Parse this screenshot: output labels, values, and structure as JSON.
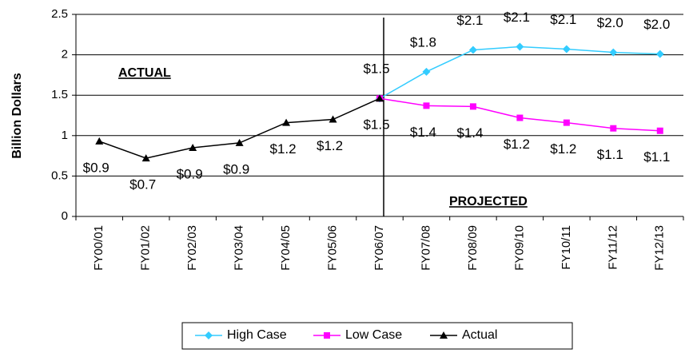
{
  "chart_data": {
    "type": "line",
    "y_label": "Billion Dollars",
    "annotations": [
      "ACTUAL",
      "PROJECTED"
    ],
    "categories": [
      "FY00/01",
      "FY01/02",
      "FY02/03",
      "FY03/04",
      "FY04/05",
      "FY05/06",
      "FY06/07",
      "FY07/08",
      "FY08/09",
      "FY09/10",
      "FY10/11",
      "FY11/12",
      "FY12/13"
    ],
    "series": [
      {
        "name": "High Case",
        "color": "#33ccff",
        "marker": "diamond",
        "values": [
          null,
          null,
          null,
          null,
          null,
          null,
          1.46,
          1.79,
          2.06,
          2.1,
          2.07,
          2.03,
          2.01
        ],
        "value_labels": [
          null,
          null,
          null,
          null,
          null,
          null,
          "$1.5",
          "$1.8",
          "$2.1",
          "$2.1",
          "$2.1",
          "$2.0",
          "$2.0"
        ]
      },
      {
        "name": "Low Case",
        "color": "#ff00ff",
        "marker": "square",
        "values": [
          null,
          null,
          null,
          null,
          null,
          null,
          1.46,
          1.37,
          1.36,
          1.22,
          1.16,
          1.09,
          1.06
        ],
        "value_labels": [
          null,
          null,
          null,
          null,
          null,
          null,
          null,
          "$1.4",
          "$1.4",
          "$1.2",
          "$1.2",
          "$1.1",
          "$1.1"
        ]
      },
      {
        "name": "Actual",
        "color": "#000000",
        "marker": "triangle",
        "values": [
          0.93,
          0.72,
          0.85,
          0.91,
          1.16,
          1.2,
          1.46,
          null,
          null,
          null,
          null,
          null,
          null
        ],
        "value_labels": [
          "$0.9",
          "$0.7",
          "$0.9",
          "$0.9",
          "$1.2",
          "$1.2",
          "$1.5",
          null,
          null,
          null,
          null,
          null,
          null
        ]
      }
    ],
    "ylim": [
      0,
      2.5
    ],
    "yticks": [
      0,
      0.5,
      1,
      1.5,
      2,
      2.5
    ],
    "grid": true,
    "legend": "bottom"
  }
}
